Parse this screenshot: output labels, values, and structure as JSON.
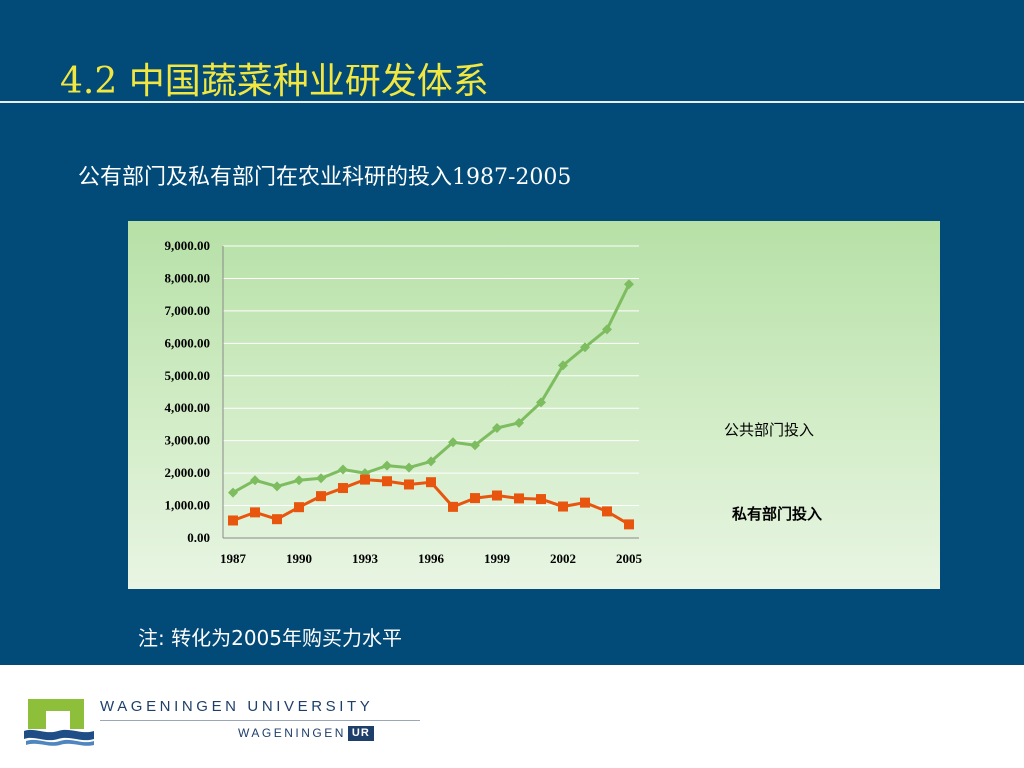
{
  "slide": {
    "title": "4.2 中国蔬菜种业研发体系",
    "subtitle": "公有部门及私有部门在农业科研的投入1987-2005",
    "footnote": "注: 转化为2005年购买力水平"
  },
  "colors": {
    "background": "#024a78",
    "title": "#f2e640",
    "public_series": "#7dbd5f",
    "private_series": "#e8550e"
  },
  "chart_data": {
    "type": "line",
    "title": "",
    "xlabel": "",
    "ylabel": "",
    "x": [
      1987,
      1988,
      1989,
      1990,
      1991,
      1992,
      1993,
      1994,
      1995,
      1996,
      1997,
      1998,
      1999,
      2000,
      2001,
      2002,
      2003,
      2004,
      2005
    ],
    "x_tick_labels": [
      "1987",
      "1990",
      "1993",
      "1996",
      "1999",
      "2002",
      "2005"
    ],
    "y_tick_labels": [
      "0.00",
      "1,000.00",
      "2,000.00",
      "3,000.00",
      "4,000.00",
      "5,000.00",
      "6,000.00",
      "7,000.00",
      "8,000.00",
      "9,000.00"
    ],
    "ylim": [
      0,
      9000
    ],
    "grid": true,
    "legend_position": "right",
    "series": [
      {
        "name": "公共部门投入",
        "marker": "diamond",
        "color": "#7dbd5f",
        "values": [
          1400,
          1780,
          1590,
          1780,
          1840,
          2110,
          2000,
          2230,
          2170,
          2360,
          2950,
          2860,
          3390,
          3550,
          4180,
          5320,
          5880,
          6430,
          7820
        ]
      },
      {
        "name": "私有部门投入",
        "marker": "square",
        "color": "#e8550e",
        "values": [
          540,
          790,
          580,
          950,
          1290,
          1540,
          1800,
          1750,
          1650,
          1720,
          960,
          1230,
          1310,
          1220,
          1200,
          970,
          1090,
          820,
          420
        ]
      }
    ]
  },
  "legend": {
    "public": "公共部门投入",
    "private": "私有部门投入"
  },
  "footer": {
    "university": "WAGENINGEN UNIVERSITY",
    "brand": "WAGENINGEN",
    "brand_badge": "UR"
  }
}
